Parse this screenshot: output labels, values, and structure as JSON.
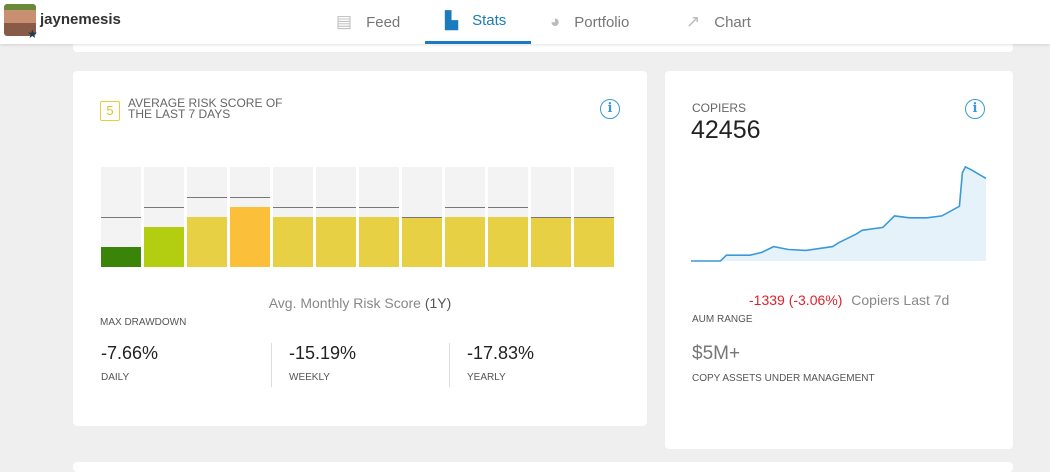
{
  "header": {
    "username": "jaynemesis",
    "tabs": [
      {
        "label": "Feed",
        "icon": "feed-icon"
      },
      {
        "label": "Stats",
        "icon": "bar-chart-icon",
        "active": true
      },
      {
        "label": "Portfolio",
        "icon": "pie-chart-icon"
      },
      {
        "label": "Chart",
        "icon": "trend-chart-icon"
      }
    ]
  },
  "risk": {
    "score": "5",
    "title": "AVERAGE RISK SCORE OF THE LAST 7 DAYS",
    "caption_main": "Avg. Monthly Risk Score",
    "caption_period": "(1Y)",
    "chart_data": {
      "type": "bar",
      "scale": [
        0,
        10
      ],
      "values": [
        2,
        4,
        5,
        6,
        5,
        5,
        5,
        5,
        5,
        5,
        5,
        5
      ],
      "max_values": [
        5,
        6,
        7,
        7,
        6,
        6,
        6,
        5,
        6,
        6,
        5,
        5
      ],
      "colors": [
        "#398409",
        "#b3cd10",
        "#e8d044",
        "#fbbf3a",
        "#e8d044",
        "#e8d044",
        "#e8d044",
        "#e8d044",
        "#e8d044",
        "#e8d044",
        "#e8d044",
        "#e8d044"
      ]
    },
    "drawdown_label": "MAX DRAWDOWN",
    "stats": [
      {
        "value": "-7.66%",
        "label": "DAILY"
      },
      {
        "value": "-15.19%",
        "label": "WEEKLY"
      },
      {
        "value": "-17.83%",
        "label": "YEARLY"
      }
    ]
  },
  "copiers": {
    "title": "COPIERS",
    "count": "42456",
    "change": "-1339 (-3.06%)",
    "change_label": "Copiers Last 7d",
    "change_color": "#e0212b",
    "aum_label": "AUM RANGE",
    "aum_value": "$5M+",
    "aum_desc": "COPY ASSETS UNDER MANAGEMENT",
    "chart_data": {
      "type": "area",
      "x": [
        0,
        10,
        12,
        20,
        24,
        28,
        33,
        39,
        48,
        50,
        56,
        58,
        65,
        69,
        74,
        80,
        85,
        91,
        92,
        93,
        95,
        100
      ],
      "y": [
        0,
        0,
        6,
        6,
        9,
        15,
        12,
        11,
        15,
        19,
        28,
        32,
        35,
        47,
        45,
        45,
        47,
        57,
        92,
        98,
        95,
        86
      ],
      "color": "#3a9ad9"
    }
  }
}
